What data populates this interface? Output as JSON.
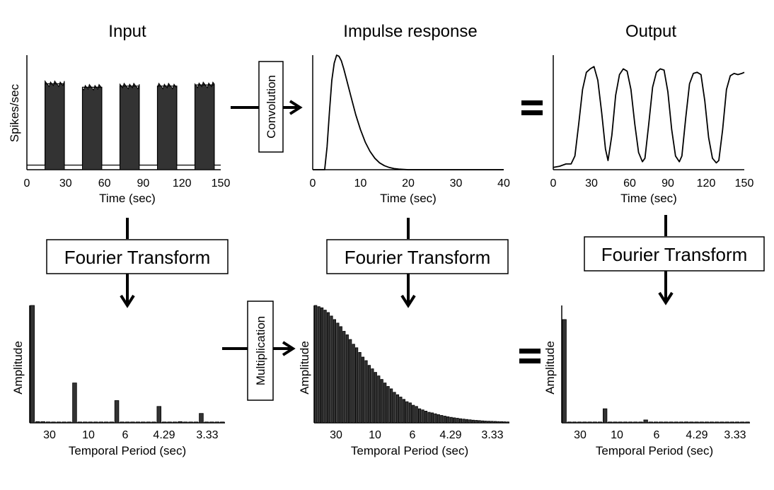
{
  "colors": {
    "ink": "#000000",
    "bar_fill": "#333333",
    "background": "#ffffff"
  },
  "titles": {
    "input": "Input",
    "impulse": "Impulse response",
    "output": "Output"
  },
  "operations": {
    "convolution": "Convolution",
    "multiplication": "Multiplication",
    "fourier": "Fourier Transform",
    "equals": "="
  },
  "chart_data": [
    {
      "id": "input_time",
      "type": "line",
      "title": "Input",
      "xlabel": "Time (sec)",
      "ylabel": "Spikes/sec",
      "xlim": [
        0,
        150
      ],
      "ylim": [
        0,
        1
      ],
      "xticks": [
        "0",
        "30",
        "60",
        "90",
        "120",
        "150"
      ],
      "description_blocks": [
        [
          14,
          29
        ],
        [
          43,
          58
        ],
        [
          72,
          87
        ],
        [
          101,
          116
        ],
        [
          130,
          145
        ]
      ],
      "series": [
        {
          "x": [
            0,
            14,
            14,
            29,
            29,
            43,
            43,
            58,
            58,
            72,
            72,
            87,
            87,
            101,
            101,
            116,
            116,
            130,
            130,
            145,
            145,
            150
          ],
          "y": [
            0.04,
            0.04,
            0.75,
            0.75,
            0.04,
            0.04,
            0.72,
            0.72,
            0.04,
            0.04,
            0.73,
            0.73,
            0.04,
            0.04,
            0.73,
            0.73,
            0.04,
            0.04,
            0.74,
            0.74,
            0.04,
            0.04
          ]
        }
      ]
    },
    {
      "id": "impulse_time",
      "type": "line",
      "title": "Impulse response",
      "xlabel": "Time (sec)",
      "ylabel": "",
      "xlim": [
        0,
        40
      ],
      "ylim": [
        0,
        1
      ],
      "xticks": [
        "0",
        "10",
        "20",
        "30",
        "40"
      ],
      "series": [
        {
          "x": [
            0,
            2.5,
            3,
            3.5,
            4,
            4.5,
            5,
            5.5,
            6,
            6.5,
            7,
            8,
            9,
            10,
            11,
            12,
            13,
            14,
            15,
            16,
            17,
            18,
            20,
            25,
            30,
            40
          ],
          "y": [
            0,
            0,
            0.2,
            0.5,
            0.78,
            0.93,
            1.0,
            0.99,
            0.95,
            0.88,
            0.8,
            0.64,
            0.48,
            0.35,
            0.24,
            0.16,
            0.1,
            0.06,
            0.035,
            0.02,
            0.01,
            0.005,
            0,
            0,
            0,
            0
          ]
        }
      ]
    },
    {
      "id": "output_time",
      "type": "line",
      "title": "Output",
      "xlabel": "Time (sec)",
      "ylabel": "",
      "xlim": [
        0,
        150
      ],
      "ylim": [
        0,
        1
      ],
      "xticks": [
        "0",
        "30",
        "60",
        "90",
        "120",
        "150"
      ],
      "series": [
        {
          "x": [
            0,
            5,
            10,
            14,
            17,
            20,
            23,
            26,
            29,
            32,
            35,
            38,
            41,
            43,
            46,
            49,
            52,
            55,
            58,
            61,
            64,
            67,
            70,
            72,
            75,
            78,
            81,
            84,
            87,
            90,
            93,
            96,
            99,
            101,
            104,
            107,
            110,
            113,
            116,
            119,
            122,
            125,
            128,
            130,
            133,
            136,
            139,
            142,
            145,
            148,
            150
          ],
          "y": [
            0.02,
            0.03,
            0.05,
            0.05,
            0.12,
            0.4,
            0.7,
            0.85,
            0.88,
            0.9,
            0.78,
            0.5,
            0.18,
            0.08,
            0.3,
            0.65,
            0.83,
            0.88,
            0.86,
            0.7,
            0.4,
            0.15,
            0.07,
            0.1,
            0.4,
            0.72,
            0.85,
            0.88,
            0.87,
            0.68,
            0.35,
            0.12,
            0.07,
            0.12,
            0.45,
            0.75,
            0.84,
            0.85,
            0.83,
            0.6,
            0.28,
            0.1,
            0.06,
            0.08,
            0.35,
            0.7,
            0.82,
            0.84,
            0.83,
            0.84,
            0.85
          ]
        }
      ]
    },
    {
      "id": "input_freq",
      "type": "bar",
      "xlabel": "Temporal Period (sec)",
      "ylabel": "Amplitude",
      "ylim": [
        0,
        1
      ],
      "xticks": [
        "30",
        "10",
        "6",
        "4.29",
        "3.33"
      ],
      "values": [
        1.0,
        0.01,
        0.01,
        0.008,
        0.006,
        0.006,
        0.005,
        0.005,
        0.34,
        0.006,
        0.005,
        0.005,
        0.005,
        0.004,
        0.004,
        0.004,
        0.19,
        0.004,
        0.004,
        0.004,
        0.004,
        0.004,
        0.003,
        0.003,
        0.14,
        0.003,
        0.003,
        0.003,
        0.01,
        0.003,
        0.003,
        0.003,
        0.08,
        0.003,
        0.003,
        0.003,
        0.003
      ]
    },
    {
      "id": "impulse_freq",
      "type": "bar",
      "xlabel": "Temporal Period (sec)",
      "ylabel": "Amplitude",
      "ylim": [
        0,
        1
      ],
      "xticks": [
        "30",
        "10",
        "6",
        "4.29",
        "3.33"
      ],
      "values": [
        1.0,
        0.99,
        0.98,
        0.96,
        0.94,
        0.91,
        0.88,
        0.85,
        0.82,
        0.78,
        0.75,
        0.71,
        0.67,
        0.64,
        0.6,
        0.56,
        0.53,
        0.49,
        0.46,
        0.43,
        0.4,
        0.37,
        0.34,
        0.31,
        0.29,
        0.26,
        0.24,
        0.22,
        0.2,
        0.18,
        0.17,
        0.15,
        0.14,
        0.12,
        0.11,
        0.1,
        0.09,
        0.085,
        0.077,
        0.07,
        0.063,
        0.057,
        0.052,
        0.047,
        0.043,
        0.039,
        0.035,
        0.032,
        0.029,
        0.026,
        0.023,
        0.021,
        0.019,
        0.017,
        0.015,
        0.014,
        0.013,
        0.012,
        0.011,
        0.01,
        0.009,
        0.008
      ]
    },
    {
      "id": "output_freq",
      "type": "bar",
      "xlabel": "Temporal Period (sec)",
      "ylabel": "Amplitude",
      "ylim": [
        0,
        1
      ],
      "xticks": [
        "30",
        "10",
        "6",
        "4.29",
        "3.33"
      ],
      "values": [
        0.88,
        0.005,
        0.005,
        0.005,
        0.004,
        0.004,
        0.004,
        0.004,
        0.12,
        0.004,
        0.003,
        0.003,
        0.003,
        0.003,
        0.003,
        0.003,
        0.025,
        0.003,
        0.003,
        0.003,
        0.003,
        0.003,
        0.003,
        0.003,
        0.008,
        0.003,
        0.003,
        0.003,
        0.003,
        0.003,
        0.003,
        0.003,
        0.004,
        0.003,
        0.003,
        0.003,
        0.003
      ]
    }
  ]
}
